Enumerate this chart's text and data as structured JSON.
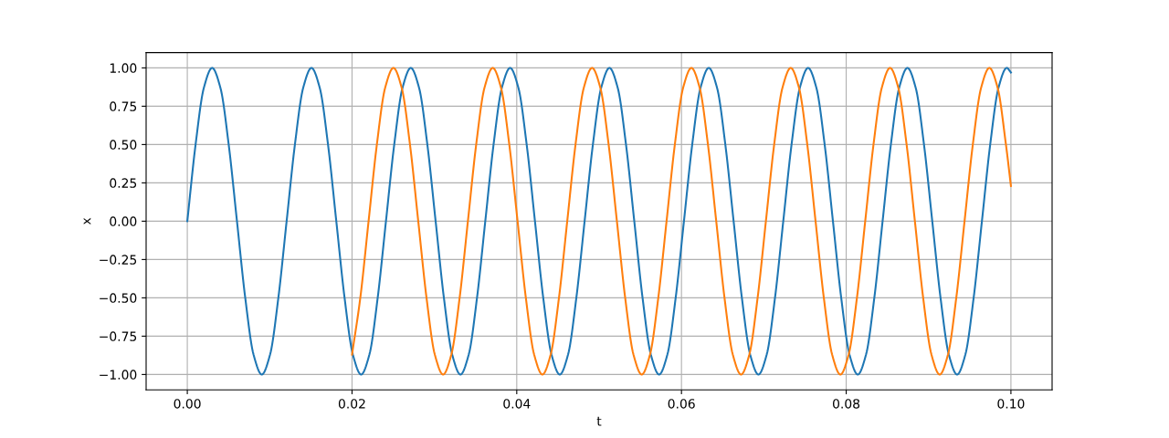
{
  "chart_data": {
    "type": "line",
    "xlabel": "t",
    "ylabel": "x",
    "xlim": [
      -0.005,
      0.105
    ],
    "ylim": [
      -1.1,
      1.1
    ],
    "xticks": [
      {
        "value": 0,
        "label": "0.00"
      },
      {
        "value": 0.02,
        "label": "0.02"
      },
      {
        "value": 0.04,
        "label": "0.04"
      },
      {
        "value": 0.06,
        "label": "0.06"
      },
      {
        "value": 0.08,
        "label": "0.08"
      },
      {
        "value": 0.1,
        "label": "0.10"
      }
    ],
    "yticks": [
      {
        "value": -1,
        "label": "−1.00"
      },
      {
        "value": -0.75,
        "label": "−0.75"
      },
      {
        "value": -0.5,
        "label": "−0.50"
      },
      {
        "value": -0.25,
        "label": "−0.25"
      },
      {
        "value": 0,
        "label": "0.00"
      },
      {
        "value": 0.25,
        "label": "0.25"
      },
      {
        "value": 0.5,
        "label": "0.50"
      },
      {
        "value": 0.75,
        "label": "0.75"
      },
      {
        "value": 1,
        "label": "1.00"
      }
    ],
    "grid": true,
    "marker": "none",
    "line_style": "solid",
    "series": [
      {
        "color": "#1f77b4",
        "x": [
          0,
          0.001005,
          0.00201,
          0.003015,
          0.00402,
          0.005025,
          0.00603,
          0.007035,
          0.00804,
          0.009045,
          0.01005,
          0.011055,
          0.01206,
          0.013065,
          0.01407,
          0.015075,
          0.01608,
          0.017085,
          0.01809,
          0.019095,
          0.0201,
          0.021105,
          0.02211,
          0.023115,
          0.02412,
          0.025125,
          0.02613,
          0.027135,
          0.02814,
          0.029145,
          0.03015,
          0.031155,
          0.03216,
          0.033165,
          0.03417,
          0.035175,
          0.03618,
          0.037185,
          0.03819,
          0.039195,
          0.0402,
          0.041205,
          0.04221,
          0.043215,
          0.04422,
          0.045225,
          0.04623,
          0.047235,
          0.04824,
          0.049245,
          0.05025,
          0.051255,
          0.05226,
          0.053265,
          0.05427,
          0.055275,
          0.05628,
          0.057285,
          0.05829,
          0.059295,
          0.0603,
          0.061305,
          0.06231,
          0.063315,
          0.06432,
          0.065325,
          0.06633,
          0.067335,
          0.06834,
          0.069345,
          0.07035,
          0.071355,
          0.07236,
          0.073365,
          0.07437,
          0.075375,
          0.07638,
          0.077385,
          0.07839,
          0.079395,
          0.0804,
          0.081405,
          0.08241,
          0.083415,
          0.08442,
          0.085425,
          0.08643,
          0.087435,
          0.08844,
          0.089445,
          0.09045,
          0.091455,
          0.09246,
          0.093465,
          0.09447,
          0.095475,
          0.09648,
          0.097485,
          0.09849,
          0.099495,
          0.1
        ],
        "values": [
          0,
          0.5,
          0.87,
          1,
          0.87,
          0.5,
          0,
          -0.5,
          -0.87,
          -1,
          -0.87,
          -0.5,
          0,
          0.5,
          0.87,
          1,
          0.87,
          0.5,
          0,
          -0.5,
          -0.87,
          -1,
          -0.87,
          -0.5,
          0,
          0.5,
          0.87,
          1,
          0.87,
          0.5,
          0,
          -0.5,
          -0.87,
          -1,
          -0.87,
          -0.5,
          0,
          0.5,
          0.87,
          1,
          0.87,
          0.5,
          0,
          -0.5,
          -0.87,
          -1,
          -0.87,
          -0.5,
          0,
          0.5,
          0.87,
          1,
          0.87,
          0.5,
          0,
          -0.5,
          -0.87,
          -1,
          -0.87,
          -0.5,
          0,
          0.5,
          0.87,
          1,
          0.87,
          0.5,
          0,
          -0.5,
          -0.87,
          -1,
          -0.87,
          -0.5,
          0,
          0.5,
          0.87,
          1,
          0.87,
          0.5,
          0,
          -0.5,
          -0.87,
          -1,
          -0.87,
          -0.5,
          0,
          0.5,
          0.87,
          1,
          0.87,
          0.5,
          0,
          -0.5,
          -0.87,
          -1,
          -0.87,
          -0.5,
          0,
          0.5,
          0.87,
          1,
          0.97
        ]
      },
      {
        "color": "#ff7f0e",
        "x": [
          0.02,
          0.021005,
          0.02201,
          0.023015,
          0.02402,
          0.025025,
          0.02603,
          0.027035,
          0.02804,
          0.029045,
          0.03005,
          0.031055,
          0.03206,
          0.033065,
          0.03407,
          0.035075,
          0.03608,
          0.037085,
          0.03809,
          0.039095,
          0.0401,
          0.041105,
          0.04211,
          0.043115,
          0.04412,
          0.045125,
          0.04613,
          0.047135,
          0.04814,
          0.049145,
          0.05015,
          0.051155,
          0.05216,
          0.053165,
          0.05417,
          0.055175,
          0.05618,
          0.057185,
          0.05819,
          0.059195,
          0.0602,
          0.061205,
          0.06221,
          0.063215,
          0.06422,
          0.065225,
          0.06623,
          0.067235,
          0.06824,
          0.069245,
          0.07025,
          0.071255,
          0.07226,
          0.073265,
          0.07427,
          0.075275,
          0.07628,
          0.077285,
          0.07829,
          0.079295,
          0.0803,
          0.081305,
          0.08231,
          0.083315,
          0.08432,
          0.085325,
          0.08633,
          0.087335,
          0.08834,
          0.089345,
          0.09035,
          0.091355,
          0.09236,
          0.093365,
          0.09437,
          0.095375,
          0.09638,
          0.097385,
          0.09839,
          0.099395,
          0.1
        ],
        "values": [
          -0.87,
          -0.5,
          0,
          0.5,
          0.87,
          1,
          0.87,
          0.5,
          0,
          -0.5,
          -0.87,
          -1,
          -0.87,
          -0.5,
          0,
          0.5,
          0.87,
          1,
          0.87,
          0.5,
          0,
          -0.5,
          -0.87,
          -1,
          -0.87,
          -0.5,
          0,
          0.5,
          0.87,
          1,
          0.87,
          0.5,
          0,
          -0.5,
          -0.87,
          -1,
          -0.87,
          -0.5,
          0,
          0.5,
          0.87,
          1,
          0.87,
          0.5,
          0,
          -0.5,
          -0.87,
          -1,
          -0.87,
          -0.5,
          0,
          0.5,
          0.87,
          1,
          0.87,
          0.5,
          0,
          -0.5,
          -0.87,
          -1,
          -0.87,
          -0.5,
          0,
          0.5,
          0.87,
          1,
          0.87,
          0.5,
          0,
          -0.5,
          -0.87,
          -1,
          -0.87,
          -0.5,
          0,
          0.5,
          0.87,
          1,
          0.87,
          0.5,
          0.23
        ]
      }
    ]
  }
}
